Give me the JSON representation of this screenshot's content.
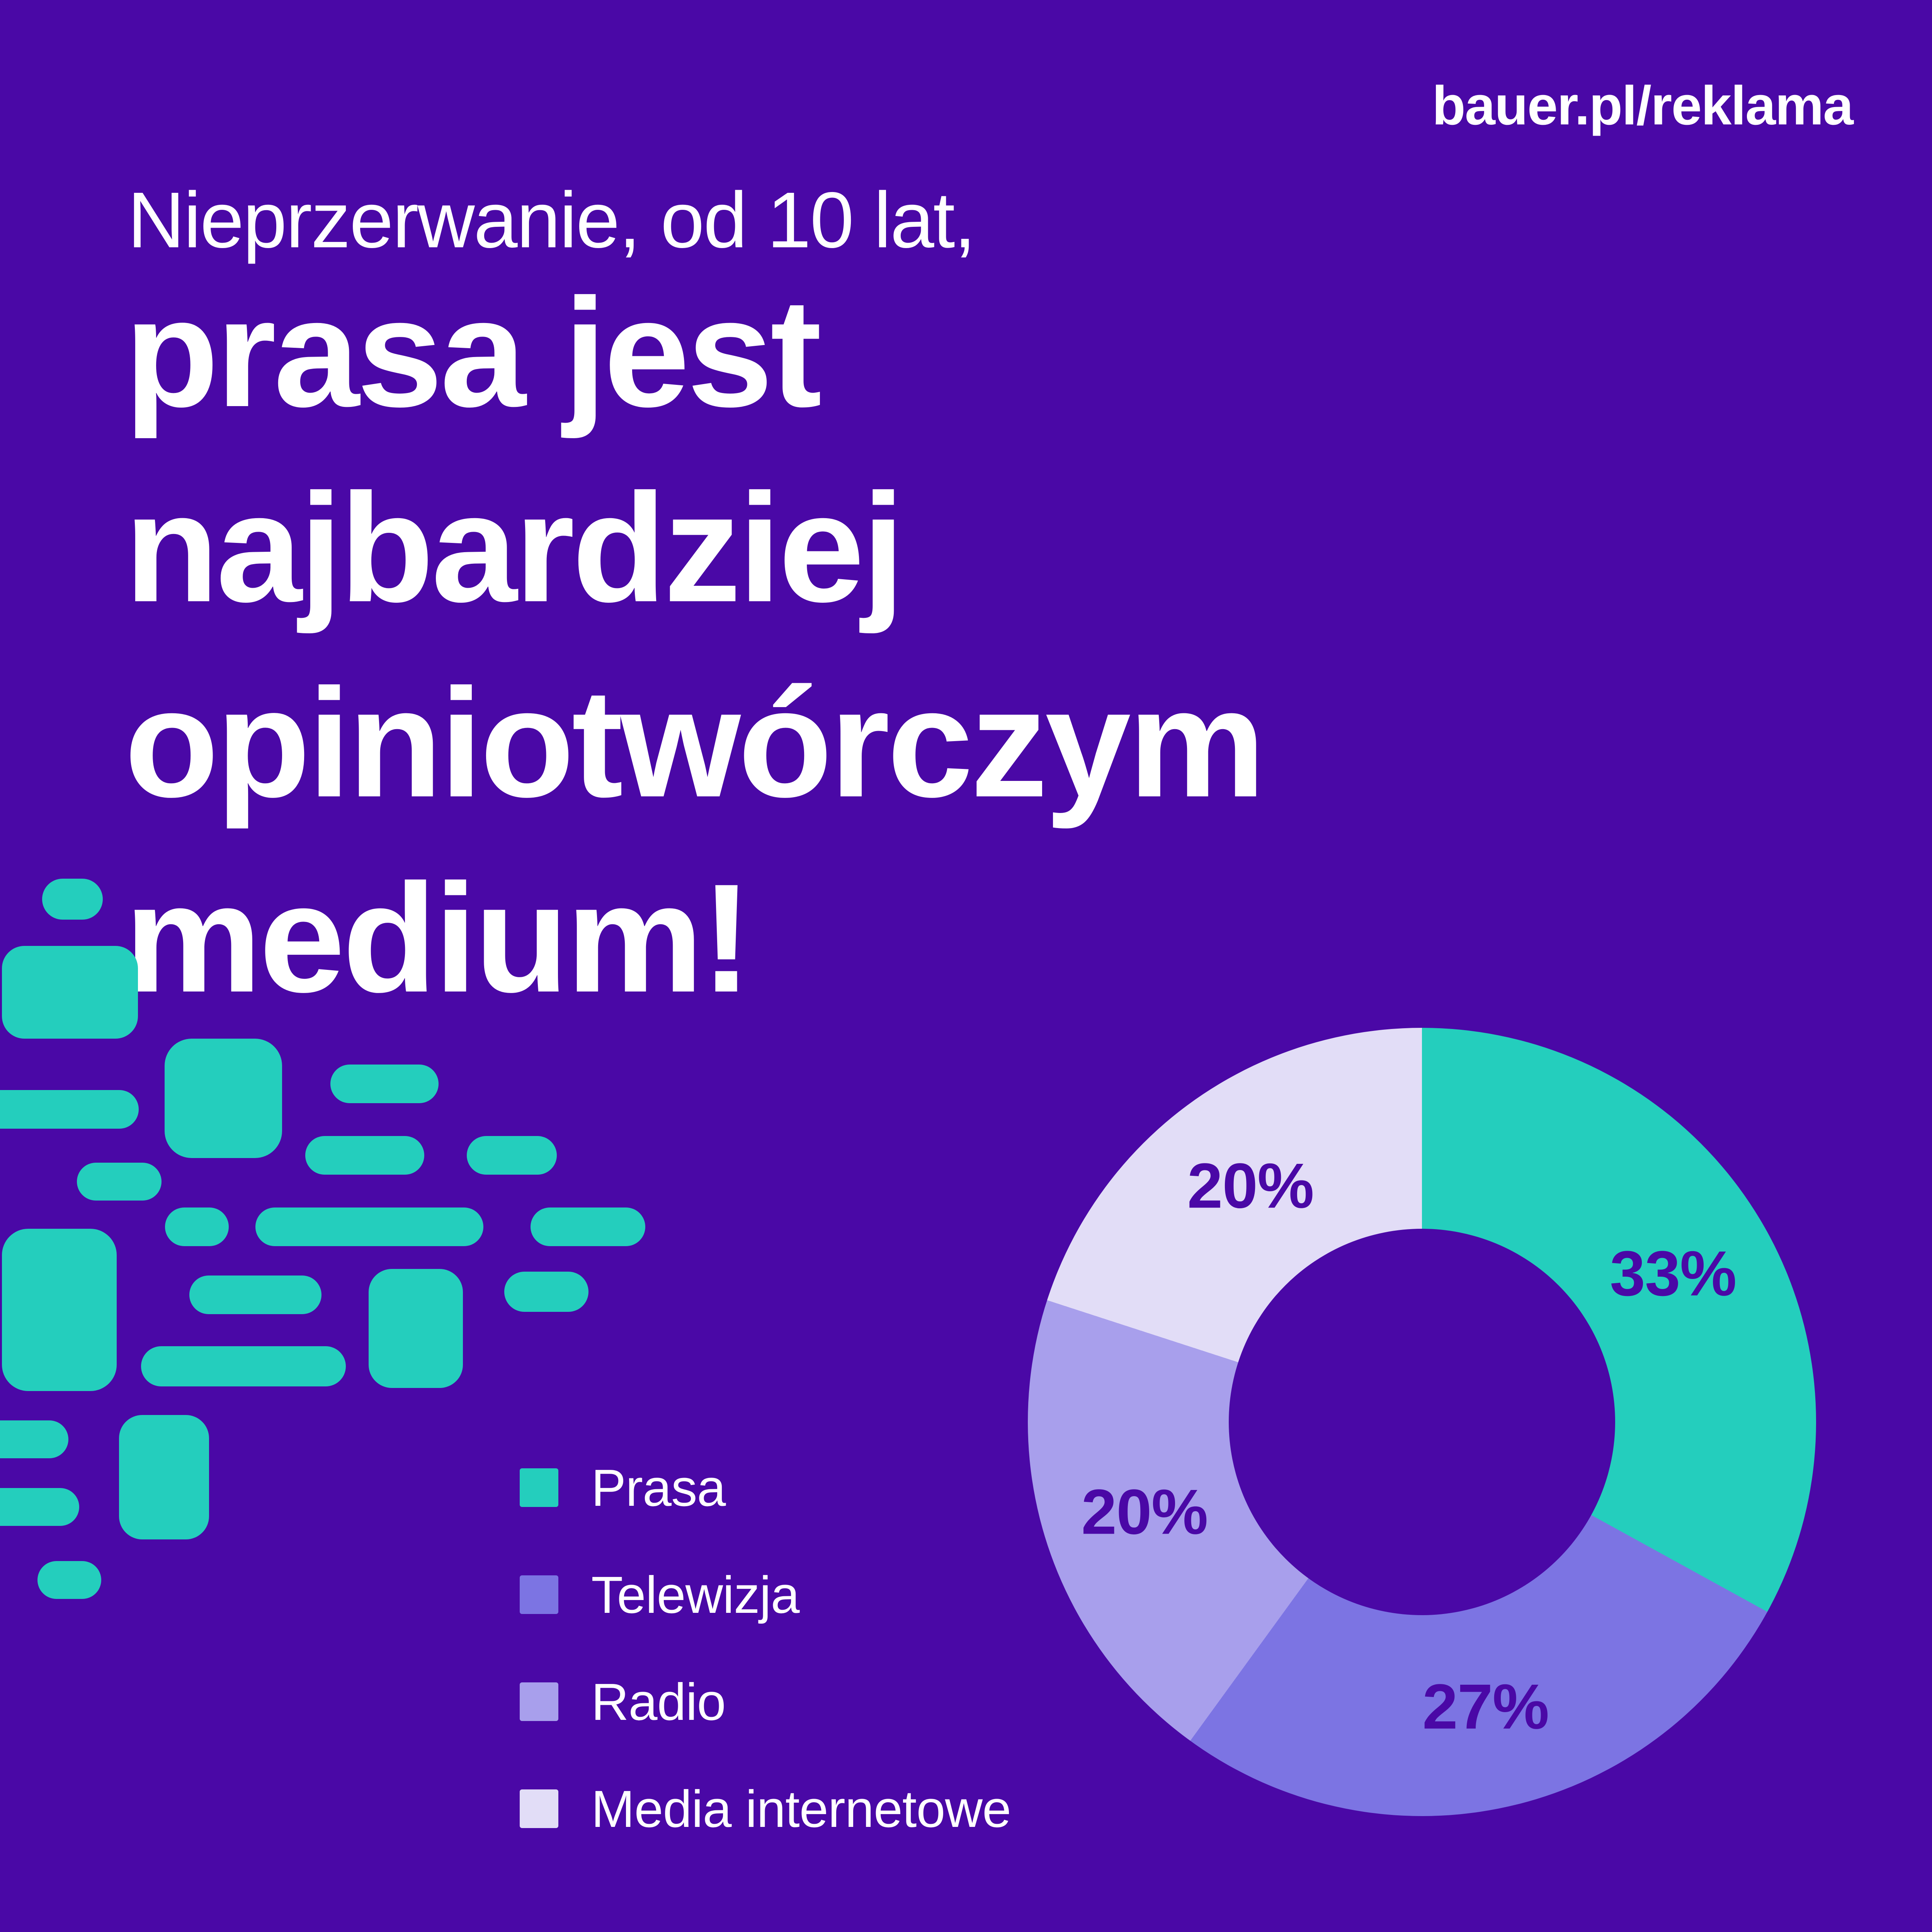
{
  "page": {
    "background_color": "#4A08A6",
    "accent_color": "#24CEBD",
    "text_color": "#FFFFFF"
  },
  "header": {
    "url_label": "bauer.pl/reklama"
  },
  "headline": {
    "intro": "Nieprzerwanie, od 10 lat,",
    "lines": [
      "prasa jest",
      "najbardziej",
      "opiniotwórczym",
      "medium!"
    ]
  },
  "chart_data": {
    "type": "pie",
    "subtype": "donut",
    "title": "",
    "categories": [
      "Prasa",
      "Telewizja",
      "Radio",
      "Media internetowe"
    ],
    "values": [
      33,
      27,
      20,
      20
    ],
    "unit": "%",
    "value_labels": [
      "33%",
      "27%",
      "20%",
      "20%"
    ],
    "colors": [
      "#24CEBD",
      "#7C74E3",
      "#A89FEC",
      "#E2DDF7"
    ],
    "start_angle_deg": 0,
    "direction": "clockwise",
    "value_label_color": "#4A08A6",
    "legend_position": "bottom-left",
    "grid": false
  },
  "legend": {
    "items": [
      {
        "label": "Prasa",
        "color": "#24CEBD"
      },
      {
        "label": "Telewizja",
        "color": "#7C74E3"
      },
      {
        "label": "Radio",
        "color": "#A89FEC"
      },
      {
        "label": "Media internetowe",
        "color": "#E2DDF7"
      }
    ]
  },
  "decor": {
    "color": "#24CEBD",
    "tiles": [
      [
        109,
        2274,
        157,
        106,
        53
      ],
      [
        5,
        2448,
        352,
        240,
        58
      ],
      [
        -50,
        2821,
        409,
        100,
        50
      ],
      [
        426,
        2688,
        304,
        309,
        70
      ],
      [
        855,
        2755,
        280,
        100,
        50
      ],
      [
        199,
        3009,
        219,
        98,
        49
      ],
      [
        790,
        2940,
        308,
        100,
        50
      ],
      [
        1208,
        2940,
        233,
        100,
        50
      ],
      [
        427,
        3125,
        165,
        100,
        50
      ],
      [
        661,
        3125,
        590,
        100,
        50
      ],
      [
        1373,
        3125,
        297,
        100,
        50
      ],
      [
        5,
        3180,
        297,
        420,
        68
      ],
      [
        490,
        3301,
        342,
        100,
        50
      ],
      [
        954,
        3284,
        244,
        308,
        60
      ],
      [
        1305,
        3291,
        218,
        104,
        52
      ],
      [
        365,
        3484,
        530,
        104,
        52
      ],
      [
        -50,
        3676,
        227,
        98,
        49
      ],
      [
        308,
        3662,
        233,
        322,
        60
      ],
      [
        -50,
        3851,
        255,
        98,
        49
      ],
      [
        97,
        4040,
        165,
        98,
        49
      ]
    ]
  }
}
